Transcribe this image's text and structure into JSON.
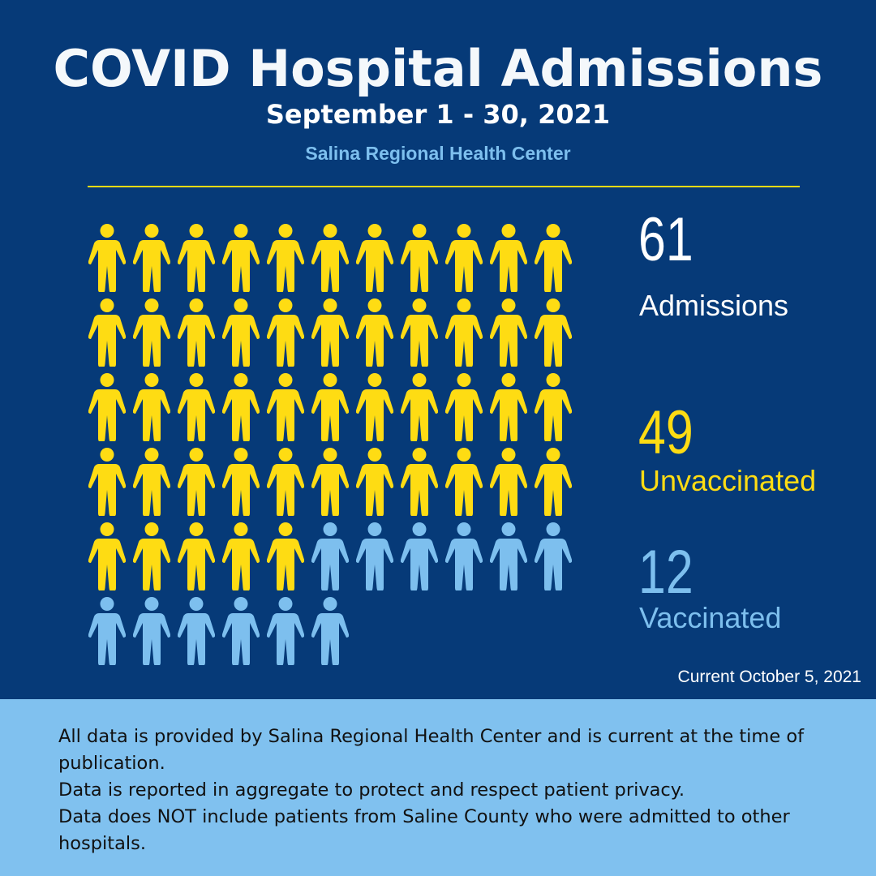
{
  "title": "COVID Hospital Admissions",
  "subtitle": "September 1 - 30, 2021",
  "organization": "Salina Regional Health Center",
  "stats": [
    {
      "value": "61",
      "label": "Admissions",
      "color": "#ffffff"
    },
    {
      "value": "49",
      "label": "Unvaccinated",
      "color": "#fedc13"
    },
    {
      "value": "12",
      "label": "Vaccinated",
      "color": "#7dbfee"
    }
  ],
  "current": "Current October 5, 2021",
  "footer": {
    "lines": [
      "All data is provided by Salina Regional Health Center and is current at the time of publication.",
      "Data is reported in aggregate to protect and respect patient privacy.",
      "Data does NOT include patients from Saline County who were admitted to other hospitals."
    ]
  },
  "chart_data": {
    "type": "pictogram",
    "icon": "person-icon",
    "icons_per_row": 11,
    "series": [
      {
        "name": "Unvaccinated",
        "value": 49,
        "color": "#fedc13"
      },
      {
        "name": "Vaccinated",
        "value": 12,
        "color": "#7dbfee"
      }
    ],
    "total": 61
  }
}
